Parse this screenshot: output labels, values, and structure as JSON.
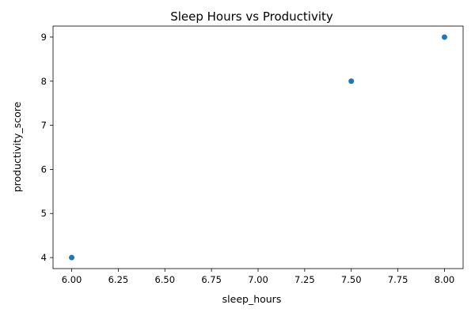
{
  "chart_data": {
    "type": "scatter",
    "title": "Sleep Hours vs Productivity",
    "xlabel": "sleep_hours",
    "ylabel": "productivity_score",
    "x": [
      6.0,
      7.5,
      8.0
    ],
    "y": [
      4,
      8,
      9
    ],
    "xlim": [
      5.9,
      8.1
    ],
    "ylim": [
      3.75,
      9.25
    ],
    "xticks": [
      "6.00",
      "6.25",
      "6.50",
      "6.75",
      "7.00",
      "7.25",
      "7.50",
      "7.75",
      "8.00"
    ],
    "yticks": [
      "4",
      "5",
      "6",
      "7",
      "8",
      "9"
    ],
    "grid": false,
    "color": "#1f77b4"
  }
}
